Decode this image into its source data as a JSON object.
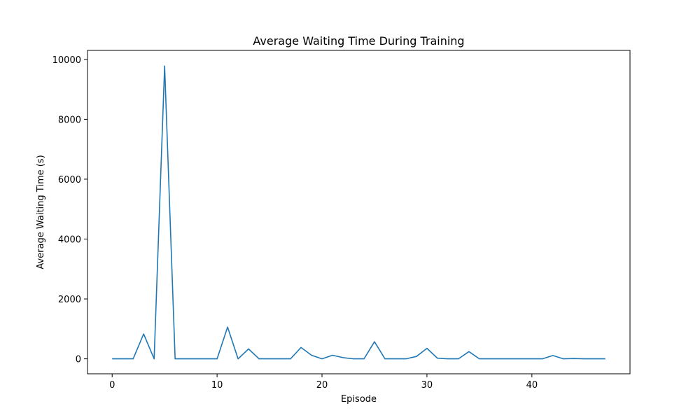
{
  "chart_data": {
    "type": "line",
    "title": "Average Waiting Time During Training",
    "xlabel": "Episode",
    "ylabel": "Average Waiting Time (s)",
    "xlim": [
      -2.35,
      49.35
    ],
    "ylim": [
      -500,
      10300
    ],
    "xticks": [
      0,
      10,
      20,
      30,
      40
    ],
    "yticks": [
      0,
      2000,
      4000,
      6000,
      8000,
      10000
    ],
    "grid": false,
    "series": [
      {
        "color": "#1f77b4",
        "x": [
          0,
          1,
          2,
          3,
          4,
          5,
          6,
          7,
          8,
          9,
          10,
          11,
          12,
          13,
          14,
          15,
          16,
          17,
          18,
          19,
          20,
          21,
          22,
          23,
          24,
          25,
          26,
          27,
          28,
          29,
          30,
          31,
          32,
          33,
          34,
          35,
          36,
          37,
          38,
          39,
          40,
          41,
          42,
          43,
          44,
          45,
          46,
          47
        ],
        "y": [
          0,
          0,
          0,
          830,
          0,
          9780,
          0,
          0,
          0,
          0,
          0,
          1060,
          0,
          330,
          0,
          0,
          0,
          0,
          380,
          120,
          0,
          120,
          40,
          0,
          0,
          570,
          0,
          0,
          0,
          80,
          350,
          20,
          0,
          0,
          240,
          0,
          0,
          0,
          0,
          0,
          0,
          0,
          110,
          0,
          10,
          0,
          0,
          0
        ]
      }
    ]
  }
}
